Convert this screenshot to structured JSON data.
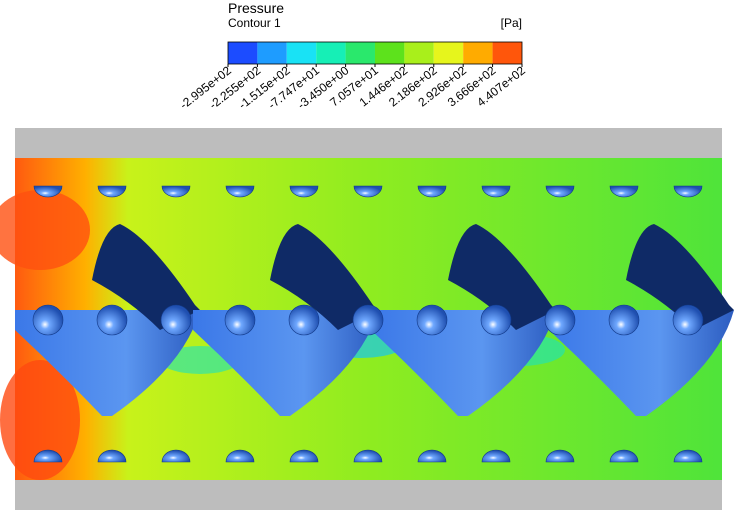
{
  "legend": {
    "title": "Pressure",
    "subtitle": "Contour 1",
    "unit": "[Pa]",
    "colors": [
      "#1c4cff",
      "#1e9cff",
      "#19e2f5",
      "#16efb6",
      "#2ae86c",
      "#5de21c",
      "#a9ef1b",
      "#e6f51c",
      "#ffab00",
      "#ff560b"
    ],
    "ticks": [
      {
        "value": -299.5,
        "label": "-2.995e+02"
      },
      {
        "value": -225.5,
        "label": "-2.255e+02"
      },
      {
        "value": -151.5,
        "label": "-1.515e+02"
      },
      {
        "value": -77.47,
        "label": "-7.747e+01"
      },
      {
        "value": -3.45,
        "label": "-3.450e+00"
      },
      {
        "value": 70.57,
        "label": "7.057e+01"
      },
      {
        "value": 144.6,
        "label": "1.446e+02"
      },
      {
        "value": 218.6,
        "label": "2.186e+02"
      },
      {
        "value": 292.6,
        "label": "2.926e+02"
      },
      {
        "value": 366.6,
        "label": "3.666e+02"
      },
      {
        "value": 440.7,
        "label": "4.407e+02"
      }
    ]
  }
}
